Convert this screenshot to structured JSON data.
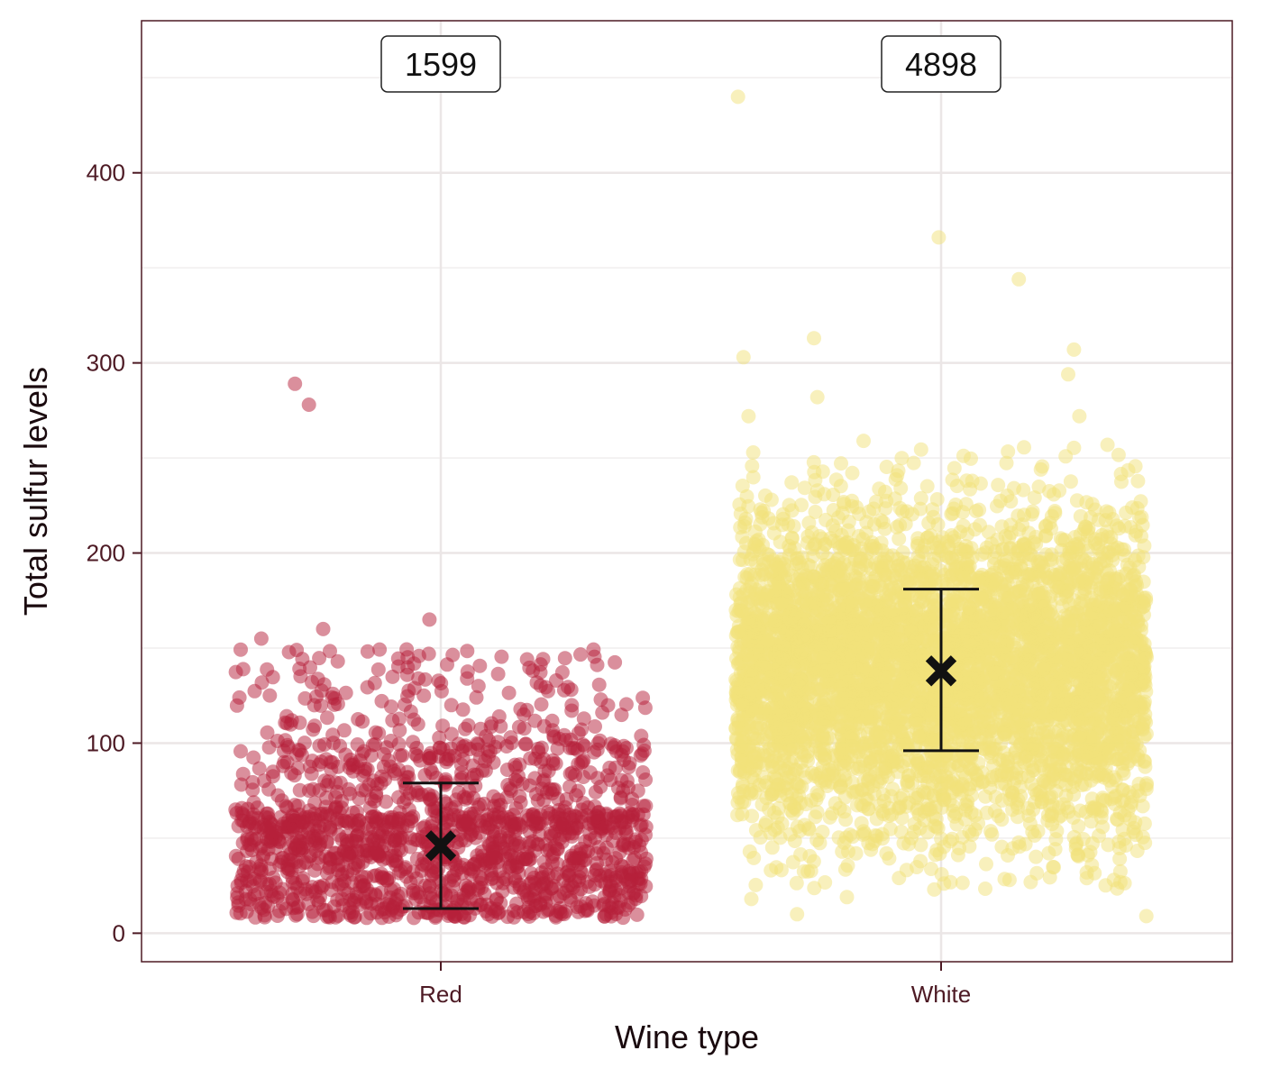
{
  "chart_data": {
    "type": "scatter",
    "subtype": "jitter-strip with mean and error bars",
    "xlabel": "Wine type",
    "ylabel": "Total sulfur levels",
    "categories": [
      "Red",
      "White"
    ],
    "ylim": [
      -15,
      480
    ],
    "yticks": [
      0,
      100,
      200,
      300,
      400
    ],
    "yticks_labels": [
      "0",
      "100",
      "200",
      "300",
      "400"
    ],
    "grid": true,
    "series": [
      {
        "category": "Red",
        "n": 1599,
        "n_label": "1599",
        "color": "#b5203a",
        "mean": 46,
        "error_low": 13,
        "error_high": 79,
        "outliers": [
          289,
          278,
          165,
          160,
          155
        ],
        "mass_range": [
          6,
          150
        ],
        "dense_range": [
          8,
          70
        ]
      },
      {
        "category": "White",
        "n": 4898,
        "n_label": "4898",
        "color": "#f2e27a",
        "mean": 138,
        "error_low": 96,
        "error_high": 181,
        "outliers": [
          440,
          366,
          344,
          313,
          307,
          303,
          294,
          282,
          272,
          272,
          259,
          9,
          10,
          18,
          19,
          28,
          29
        ],
        "mass_range": [
          20,
          260
        ],
        "dense_range": [
          70,
          220
        ]
      }
    ]
  }
}
